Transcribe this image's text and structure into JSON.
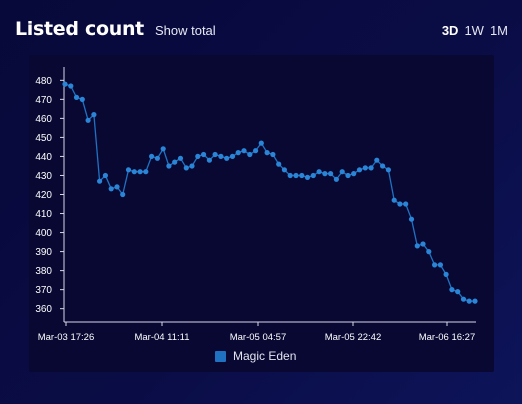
{
  "header": {
    "title": "Listed count",
    "show_total": "Show total"
  },
  "ranges": [
    "3D",
    "1W",
    "1M"
  ],
  "active_range": "3D",
  "colors": {
    "series": "#1f72c2",
    "marker": "#2a85d6",
    "background": "#07093a",
    "panel": "#080833"
  },
  "chart_data": {
    "type": "line",
    "title": "Listed count",
    "x_ticks": [
      "Mar-03 17:26",
      "Mar-04 11:11",
      "Mar-05 04:57",
      "Mar-05 22:42",
      "Mar-06 16:27"
    ],
    "yticks": [
      360,
      370,
      380,
      390,
      400,
      410,
      420,
      430,
      440,
      450,
      460,
      470,
      480
    ],
    "ylim": [
      353,
      487
    ],
    "grid": false,
    "legend_position": "bottom",
    "series": [
      {
        "name": "Magic Eden",
        "values": [
          478,
          477,
          471,
          470,
          459,
          462,
          427,
          430,
          423,
          424,
          420,
          433,
          432,
          432,
          432,
          440,
          439,
          444,
          435,
          437,
          439,
          434,
          435,
          440,
          441,
          438,
          441,
          440,
          439,
          440,
          442,
          443,
          441,
          443,
          447,
          442,
          441,
          436,
          433,
          430,
          430,
          430,
          429,
          430,
          432,
          431,
          431,
          428,
          432,
          430,
          431,
          433,
          434,
          434,
          438,
          435,
          433,
          417,
          415,
          415,
          407,
          393,
          394,
          390,
          383,
          383,
          378,
          370,
          369,
          365,
          364,
          364
        ]
      }
    ]
  }
}
